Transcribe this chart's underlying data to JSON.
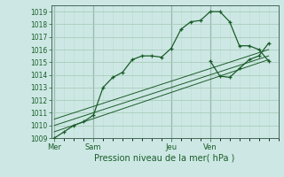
{
  "bg_color": "#cde8e4",
  "grid_color_major": "#aaccbb",
  "grid_color_minor": "#bbddcc",
  "line_color": "#1a5c2a",
  "marker_color": "#1a5c2a",
  "title": "Pression niveau de la mer( hPa )",
  "ylim": [
    1009,
    1019.5
  ],
  "yticks": [
    1009,
    1010,
    1011,
    1012,
    1013,
    1014,
    1015,
    1016,
    1017,
    1018,
    1019
  ],
  "day_labels": [
    "Mer",
    "Sam",
    "Jeu",
    "Ven"
  ],
  "day_positions": [
    0,
    24,
    72,
    96
  ],
  "series1_x": [
    0,
    6,
    12,
    18,
    24,
    30,
    36,
    42,
    48,
    54,
    60,
    66,
    72,
    78,
    84,
    90,
    96,
    102,
    108,
    114,
    120,
    126,
    132
  ],
  "series1_y": [
    1009.0,
    1009.5,
    1010.0,
    1010.3,
    1010.8,
    1013.0,
    1013.8,
    1014.2,
    1015.2,
    1015.5,
    1015.5,
    1015.4,
    1016.1,
    1017.6,
    1018.2,
    1018.3,
    1019.0,
    1019.0,
    1018.2,
    1016.3,
    1016.3,
    1016.0,
    1015.1
  ],
  "series1_markers_x": [
    0,
    6,
    12,
    18,
    24,
    30,
    36,
    42,
    48,
    54,
    60,
    66,
    72,
    78,
    84,
    90,
    96,
    102,
    108,
    114,
    120,
    126,
    132
  ],
  "series2_x": [
    0,
    132
  ],
  "series2_y": [
    1009.5,
    1015.2
  ],
  "series3_x": [
    0,
    132
  ],
  "series3_y": [
    1010.0,
    1015.5
  ],
  "series4_x": [
    0,
    132
  ],
  "series4_y": [
    1010.5,
    1016.0
  ],
  "series_after_x": [
    96,
    102,
    108,
    114,
    120,
    126,
    132
  ],
  "series_after_y": [
    1015.1,
    1013.9,
    1013.8,
    1014.5,
    1015.2,
    1015.5,
    1016.5
  ],
  "xlim": [
    -2,
    138
  ],
  "vline_positions": [
    0,
    24,
    72,
    96
  ],
  "vline_color": "#446655",
  "xlabel_fontsize": 7,
  "ytick_fontsize": 5.5,
  "xtick_fontsize": 6
}
